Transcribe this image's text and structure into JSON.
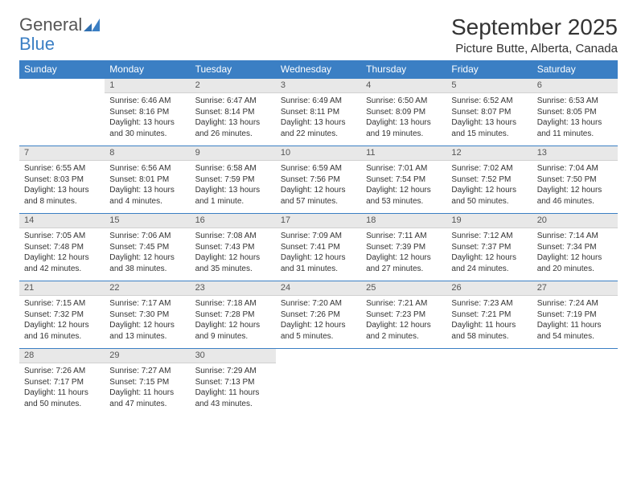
{
  "logo": {
    "text1": "General",
    "text2": "Blue"
  },
  "title": "September 2025",
  "location": "Picture Butte, Alberta, Canada",
  "colors": {
    "header_bg": "#3b7fc4",
    "header_text": "#ffffff",
    "daynum_bg": "#e8e8e8",
    "daynum_border_top": "#3b7fc4",
    "body_text": "#333333",
    "page_bg": "#ffffff"
  },
  "dayHeaders": [
    "Sunday",
    "Monday",
    "Tuesday",
    "Wednesday",
    "Thursday",
    "Friday",
    "Saturday"
  ],
  "weeks": [
    {
      "nums": [
        "",
        "1",
        "2",
        "3",
        "4",
        "5",
        "6"
      ],
      "cells": [
        {
          "sunrise": "",
          "sunset": "",
          "daylight": ""
        },
        {
          "sunrise": "Sunrise: 6:46 AM",
          "sunset": "Sunset: 8:16 PM",
          "daylight": "Daylight: 13 hours and 30 minutes."
        },
        {
          "sunrise": "Sunrise: 6:47 AM",
          "sunset": "Sunset: 8:14 PM",
          "daylight": "Daylight: 13 hours and 26 minutes."
        },
        {
          "sunrise": "Sunrise: 6:49 AM",
          "sunset": "Sunset: 8:11 PM",
          "daylight": "Daylight: 13 hours and 22 minutes."
        },
        {
          "sunrise": "Sunrise: 6:50 AM",
          "sunset": "Sunset: 8:09 PM",
          "daylight": "Daylight: 13 hours and 19 minutes."
        },
        {
          "sunrise": "Sunrise: 6:52 AM",
          "sunset": "Sunset: 8:07 PM",
          "daylight": "Daylight: 13 hours and 15 minutes."
        },
        {
          "sunrise": "Sunrise: 6:53 AM",
          "sunset": "Sunset: 8:05 PM",
          "daylight": "Daylight: 13 hours and 11 minutes."
        }
      ]
    },
    {
      "nums": [
        "7",
        "8",
        "9",
        "10",
        "11",
        "12",
        "13"
      ],
      "cells": [
        {
          "sunrise": "Sunrise: 6:55 AM",
          "sunset": "Sunset: 8:03 PM",
          "daylight": "Daylight: 13 hours and 8 minutes."
        },
        {
          "sunrise": "Sunrise: 6:56 AM",
          "sunset": "Sunset: 8:01 PM",
          "daylight": "Daylight: 13 hours and 4 minutes."
        },
        {
          "sunrise": "Sunrise: 6:58 AM",
          "sunset": "Sunset: 7:59 PM",
          "daylight": "Daylight: 13 hours and 1 minute."
        },
        {
          "sunrise": "Sunrise: 6:59 AM",
          "sunset": "Sunset: 7:56 PM",
          "daylight": "Daylight: 12 hours and 57 minutes."
        },
        {
          "sunrise": "Sunrise: 7:01 AM",
          "sunset": "Sunset: 7:54 PM",
          "daylight": "Daylight: 12 hours and 53 minutes."
        },
        {
          "sunrise": "Sunrise: 7:02 AM",
          "sunset": "Sunset: 7:52 PM",
          "daylight": "Daylight: 12 hours and 50 minutes."
        },
        {
          "sunrise": "Sunrise: 7:04 AM",
          "sunset": "Sunset: 7:50 PM",
          "daylight": "Daylight: 12 hours and 46 minutes."
        }
      ]
    },
    {
      "nums": [
        "14",
        "15",
        "16",
        "17",
        "18",
        "19",
        "20"
      ],
      "cells": [
        {
          "sunrise": "Sunrise: 7:05 AM",
          "sunset": "Sunset: 7:48 PM",
          "daylight": "Daylight: 12 hours and 42 minutes."
        },
        {
          "sunrise": "Sunrise: 7:06 AM",
          "sunset": "Sunset: 7:45 PM",
          "daylight": "Daylight: 12 hours and 38 minutes."
        },
        {
          "sunrise": "Sunrise: 7:08 AM",
          "sunset": "Sunset: 7:43 PM",
          "daylight": "Daylight: 12 hours and 35 minutes."
        },
        {
          "sunrise": "Sunrise: 7:09 AM",
          "sunset": "Sunset: 7:41 PM",
          "daylight": "Daylight: 12 hours and 31 minutes."
        },
        {
          "sunrise": "Sunrise: 7:11 AM",
          "sunset": "Sunset: 7:39 PM",
          "daylight": "Daylight: 12 hours and 27 minutes."
        },
        {
          "sunrise": "Sunrise: 7:12 AM",
          "sunset": "Sunset: 7:37 PM",
          "daylight": "Daylight: 12 hours and 24 minutes."
        },
        {
          "sunrise": "Sunrise: 7:14 AM",
          "sunset": "Sunset: 7:34 PM",
          "daylight": "Daylight: 12 hours and 20 minutes."
        }
      ]
    },
    {
      "nums": [
        "21",
        "22",
        "23",
        "24",
        "25",
        "26",
        "27"
      ],
      "cells": [
        {
          "sunrise": "Sunrise: 7:15 AM",
          "sunset": "Sunset: 7:32 PM",
          "daylight": "Daylight: 12 hours and 16 minutes."
        },
        {
          "sunrise": "Sunrise: 7:17 AM",
          "sunset": "Sunset: 7:30 PM",
          "daylight": "Daylight: 12 hours and 13 minutes."
        },
        {
          "sunrise": "Sunrise: 7:18 AM",
          "sunset": "Sunset: 7:28 PM",
          "daylight": "Daylight: 12 hours and 9 minutes."
        },
        {
          "sunrise": "Sunrise: 7:20 AM",
          "sunset": "Sunset: 7:26 PM",
          "daylight": "Daylight: 12 hours and 5 minutes."
        },
        {
          "sunrise": "Sunrise: 7:21 AM",
          "sunset": "Sunset: 7:23 PM",
          "daylight": "Daylight: 12 hours and 2 minutes."
        },
        {
          "sunrise": "Sunrise: 7:23 AM",
          "sunset": "Sunset: 7:21 PM",
          "daylight": "Daylight: 11 hours and 58 minutes."
        },
        {
          "sunrise": "Sunrise: 7:24 AM",
          "sunset": "Sunset: 7:19 PM",
          "daylight": "Daylight: 11 hours and 54 minutes."
        }
      ]
    },
    {
      "nums": [
        "28",
        "29",
        "30",
        "",
        "",
        "",
        ""
      ],
      "cells": [
        {
          "sunrise": "Sunrise: 7:26 AM",
          "sunset": "Sunset: 7:17 PM",
          "daylight": "Daylight: 11 hours and 50 minutes."
        },
        {
          "sunrise": "Sunrise: 7:27 AM",
          "sunset": "Sunset: 7:15 PM",
          "daylight": "Daylight: 11 hours and 47 minutes."
        },
        {
          "sunrise": "Sunrise: 7:29 AM",
          "sunset": "Sunset: 7:13 PM",
          "daylight": "Daylight: 11 hours and 43 minutes."
        },
        {
          "sunrise": "",
          "sunset": "",
          "daylight": ""
        },
        {
          "sunrise": "",
          "sunset": "",
          "daylight": ""
        },
        {
          "sunrise": "",
          "sunset": "",
          "daylight": ""
        },
        {
          "sunrise": "",
          "sunset": "",
          "daylight": ""
        }
      ]
    }
  ]
}
